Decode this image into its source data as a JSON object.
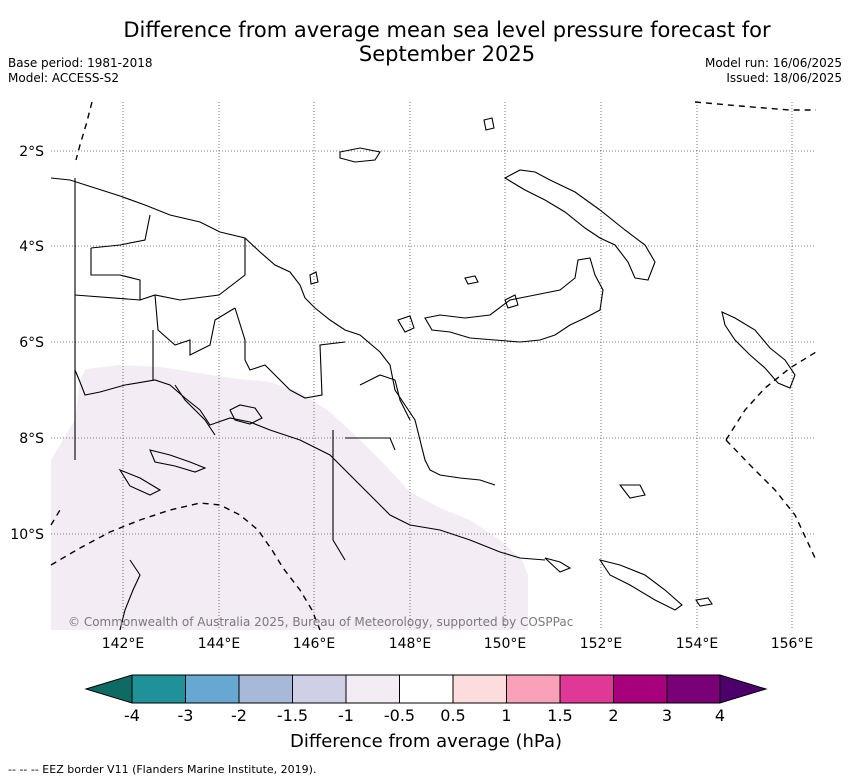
{
  "header": {
    "title_line1": "Difference from average mean sea level pressure forecast for",
    "title_line2": "September 2025",
    "base_period": "Base period: 1981-2018",
    "model": "Model: ACCESS-S2",
    "model_run": "Model run: 16/06/2025",
    "issued": "Issued: 18/06/2025"
  },
  "map": {
    "lon_labels": [
      "142°E",
      "144°E",
      "146°E",
      "148°E",
      "150°E",
      "152°E",
      "154°E",
      "156°E"
    ],
    "lat_labels": [
      "2°S",
      "4°S",
      "6°S",
      "8°S",
      "10°S"
    ],
    "copyright": "© Commonwealth of Australia 2025, Bureau of Meteorology, supported by COSPPac",
    "anomaly_color": "#f3ecf5"
  },
  "colorbar": {
    "title": "Difference from average (hPa)",
    "labels": [
      "-4",
      "-3",
      "-2",
      "-1.5",
      "-1",
      "-0.5",
      "0.5",
      "1",
      "1.5",
      "2",
      "3",
      "4"
    ],
    "colors": [
      "#0e6b63",
      "#1e9199",
      "#66a8d1",
      "#a7b8d9",
      "#cfd0e6",
      "#f3ecf5",
      "#ffffff",
      "#fcdcdc",
      "#f9a1b9",
      "#df3896",
      "#a8007c",
      "#7a0077",
      "#4d006b"
    ]
  },
  "footer": {
    "eez_legend": "-- -- -- EEZ border V11 (Flanders Marine Institute, 2019)."
  }
}
